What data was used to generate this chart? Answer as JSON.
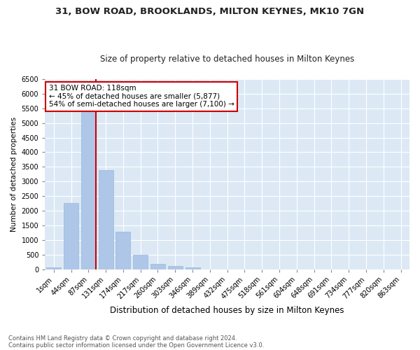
{
  "title1": "31, BOW ROAD, BROOKLANDS, MILTON KEYNES, MK10 7GN",
  "title2": "Size of property relative to detached houses in Milton Keynes",
  "xlabel": "Distribution of detached houses by size in Milton Keynes",
  "ylabel": "Number of detached properties",
  "footnote1": "Contains HM Land Registry data © Crown copyright and database right 2024.",
  "footnote2": "Contains public sector information licensed under the Open Government Licence v3.0.",
  "bar_labels": [
    "1sqm",
    "44sqm",
    "87sqm",
    "131sqm",
    "174sqm",
    "217sqm",
    "260sqm",
    "303sqm",
    "346sqm",
    "389sqm",
    "432sqm",
    "475sqm",
    "518sqm",
    "561sqm",
    "604sqm",
    "648sqm",
    "691sqm",
    "734sqm",
    "777sqm",
    "820sqm",
    "863sqm"
  ],
  "bar_values": [
    75,
    2270,
    5470,
    3380,
    1295,
    490,
    190,
    100,
    65,
    0,
    0,
    0,
    0,
    0,
    0,
    0,
    0,
    0,
    0,
    0,
    0
  ],
  "bar_color": "#aec6e8",
  "bar_edge_color": "#9ab8d8",
  "vline_color": "#cc0000",
  "ylim": [
    0,
    6500
  ],
  "yticks": [
    0,
    500,
    1000,
    1500,
    2000,
    2500,
    3000,
    3500,
    4000,
    4500,
    5000,
    5500,
    6000,
    6500
  ],
  "annotation_text": "31 BOW ROAD: 118sqm\n← 45% of detached houses are smaller (5,877)\n54% of semi-detached houses are larger (7,100) →",
  "annotation_box_facecolor": "#ffffff",
  "annotation_box_edgecolor": "#cc0000",
  "fig_facecolor": "#ffffff",
  "plot_bg_color": "#dce9f5",
  "grid_color": "#ffffff",
  "title1_fontsize": 9.5,
  "title2_fontsize": 8.5,
  "xlabel_fontsize": 8.5,
  "ylabel_fontsize": 7.5,
  "tick_fontsize": 7,
  "footnote_fontsize": 6.0,
  "annotation_fontsize": 7.5
}
